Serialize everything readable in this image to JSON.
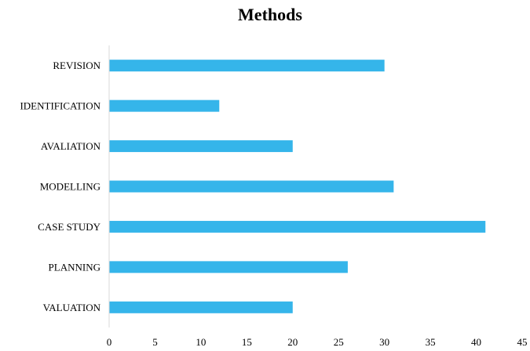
{
  "chart_data": {
    "type": "bar",
    "orientation": "horizontal",
    "title": "Methods",
    "xlabel": "",
    "ylabel": "",
    "categories": [
      "REVISION",
      "IDENTIFICATION",
      "AVALIATION",
      "MODELLING",
      "CASE STUDY",
      "PLANNING",
      "VALUATION"
    ],
    "values": [
      30,
      12,
      20,
      31,
      41,
      26,
      20
    ],
    "xlim": [
      0,
      45
    ],
    "x_ticks": [
      "0",
      "5",
      "10",
      "15",
      "20",
      "25",
      "30",
      "35",
      "40",
      "45"
    ],
    "grid": false,
    "legend": "none",
    "bar_color": "#35B5EA"
  }
}
